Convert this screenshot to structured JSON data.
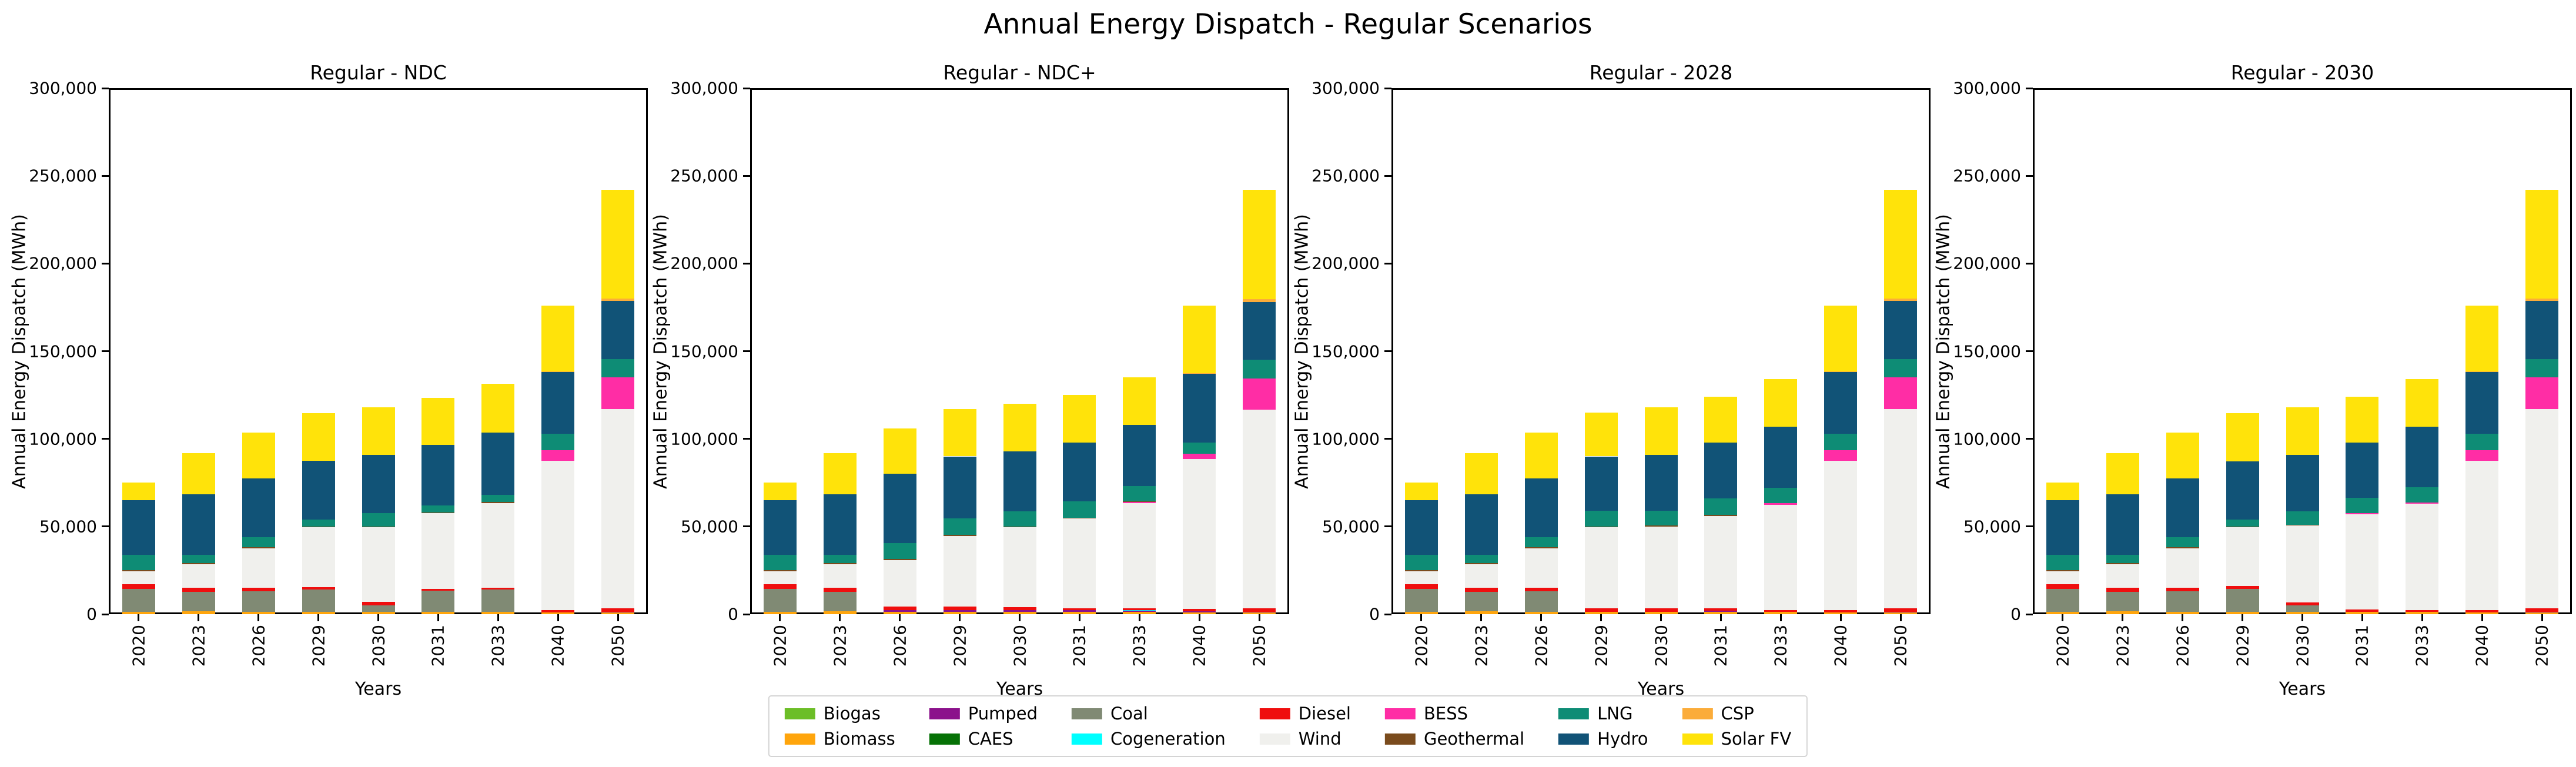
{
  "figure": {
    "title": "Annual Energy Dispatch - Regular Scenarios"
  },
  "axis": {
    "ylabel": "Annual Energy Dispatch (MWh)",
    "xlabel": "Years",
    "ylim": [
      0,
      300000
    ],
    "ytick_values": [
      0,
      50000,
      100000,
      150000,
      200000,
      250000,
      300000
    ],
    "ytick_labels": [
      "0",
      "50,000",
      "100,000",
      "150,000",
      "200,000",
      "250,000",
      "300,000"
    ],
    "grid": "off"
  },
  "colors": {
    "Biogas": "#6CBE27",
    "Biomass": "#FFA50C",
    "Pumped": "#8B118B",
    "CAES": "#067206",
    "Coal": "#808A74",
    "Cogeneration": "#00FFFF",
    "Diesel": "#EF0E0E",
    "Wind": "#F0F0ED",
    "BESS": "#FF2DA5",
    "Geothermal": "#7A4B1D",
    "LNG": "#0E8C75",
    "Hydro": "#115377",
    "CSP": "#FBAC3A",
    "Solar FV": "#FFE30A"
  },
  "legend": {
    "rows": [
      [
        "Biogas",
        "Pumped",
        "Coal",
        "Diesel",
        "BESS",
        "LNG",
        "CSP"
      ],
      [
        "Biomass",
        "CAES",
        "Cogeneration",
        "Wind",
        "Geothermal",
        "Hydro",
        "Solar FV"
      ]
    ]
  },
  "chart_data": [
    {
      "type": "bar",
      "stacked": true,
      "title": "Regular - NDC",
      "categories": [
        "2020",
        "2023",
        "2026",
        "2029",
        "2030",
        "2031",
        "2033",
        "2040",
        "2050"
      ],
      "series": [
        {
          "name": "Biogas",
          "values": [
            0,
            0,
            0,
            0,
            0,
            0,
            0,
            0,
            0
          ]
        },
        {
          "name": "Biomass",
          "values": [
            1500,
            1800,
            1500,
            1500,
            1500,
            1500,
            1500,
            1000,
            1000
          ]
        },
        {
          "name": "Pumped",
          "values": [
            0,
            0,
            0,
            0,
            0,
            0,
            0,
            0,
            500
          ]
        },
        {
          "name": "CAES",
          "values": [
            0,
            0,
            0,
            0,
            0,
            0,
            0,
            0,
            0
          ]
        },
        {
          "name": "Coal",
          "values": [
            13000,
            11000,
            11500,
            12500,
            3500,
            12000,
            12500,
            0,
            0
          ]
        },
        {
          "name": "Cogeneration",
          "values": [
            0,
            0,
            0,
            0,
            0,
            0,
            0,
            0,
            0
          ]
        },
        {
          "name": "Diesel",
          "values": [
            2500,
            2200,
            2000,
            1500,
            2000,
            1000,
            1000,
            1500,
            2000
          ]
        },
        {
          "name": "Wind",
          "values": [
            7500,
            13500,
            22500,
            34000,
            42500,
            43000,
            48500,
            85000,
            113500
          ]
        },
        {
          "name": "BESS",
          "values": [
            0,
            0,
            0,
            0,
            0,
            0,
            0,
            6000,
            18000
          ]
        },
        {
          "name": "Geothermal",
          "values": [
            800,
            700,
            600,
            600,
            600,
            600,
            500,
            0,
            0
          ]
        },
        {
          "name": "LNG",
          "values": [
            8700,
            4800,
            5900,
            3900,
            7400,
            3900,
            4000,
            9500,
            10500
          ]
        },
        {
          "name": "Hydro",
          "values": [
            31000,
            34500,
            33500,
            33500,
            33500,
            34500,
            35500,
            35000,
            33000
          ]
        },
        {
          "name": "CSP",
          "values": [
            0,
            0,
            0,
            0,
            0,
            0,
            0,
            500,
            1500
          ]
        },
        {
          "name": "Solar FV",
          "values": [
            10000,
            23500,
            26000,
            27000,
            27000,
            27000,
            28000,
            37500,
            62000
          ]
        }
      ]
    },
    {
      "type": "bar",
      "stacked": true,
      "title": "Regular - NDC+",
      "categories": [
        "2020",
        "2023",
        "2026",
        "2029",
        "2030",
        "2031",
        "2033",
        "2040",
        "2050"
      ],
      "series": [
        {
          "name": "Biogas",
          "values": [
            0,
            0,
            0,
            0,
            0,
            0,
            0,
            0,
            0
          ]
        },
        {
          "name": "Biomass",
          "values": [
            1500,
            1800,
            1500,
            1500,
            1500,
            1500,
            1500,
            1000,
            1000
          ]
        },
        {
          "name": "Pumped",
          "values": [
            0,
            0,
            800,
            800,
            800,
            800,
            500,
            600,
            500
          ]
        },
        {
          "name": "CAES",
          "values": [
            0,
            0,
            0,
            0,
            0,
            0,
            0,
            0,
            0
          ]
        },
        {
          "name": "Coal",
          "values": [
            13000,
            11000,
            0,
            0,
            0,
            0,
            0,
            0,
            0
          ]
        },
        {
          "name": "Cogeneration",
          "values": [
            0,
            0,
            0,
            0,
            0,
            0,
            400,
            0,
            0
          ]
        },
        {
          "name": "Diesel",
          "values": [
            2500,
            2200,
            2200,
            2200,
            1700,
            1200,
            900,
            1400,
            2000
          ]
        },
        {
          "name": "Wind",
          "values": [
            7500,
            13500,
            26500,
            40000,
            45500,
            51000,
            60200,
            85500,
            113000
          ]
        },
        {
          "name": "BESS",
          "values": [
            0,
            0,
            0,
            0,
            0,
            0,
            500,
            3000,
            18000
          ]
        },
        {
          "name": "Geothermal",
          "values": [
            800,
            700,
            600,
            600,
            500,
            500,
            300,
            0,
            0
          ]
        },
        {
          "name": "LNG",
          "values": [
            8700,
            4800,
            8900,
            9400,
            8500,
            9500,
            8700,
            6500,
            10500
          ]
        },
        {
          "name": "Hydro",
          "values": [
            31000,
            34500,
            39500,
            35500,
            34500,
            33500,
            35000,
            39000,
            33000
          ]
        },
        {
          "name": "CSP",
          "values": [
            0,
            0,
            0,
            0,
            0,
            0,
            0,
            500,
            1500
          ]
        },
        {
          "name": "Solar FV",
          "values": [
            10000,
            23500,
            26000,
            27000,
            27000,
            27000,
            27000,
            38500,
            62500
          ]
        }
      ]
    },
    {
      "type": "bar",
      "stacked": true,
      "title": "Regular - 2028",
      "categories": [
        "2020",
        "2023",
        "2026",
        "2029",
        "2030",
        "2031",
        "2033",
        "2040",
        "2050"
      ],
      "series": [
        {
          "name": "Biogas",
          "values": [
            0,
            0,
            0,
            0,
            0,
            0,
            0,
            0,
            0
          ]
        },
        {
          "name": "Biomass",
          "values": [
            1500,
            1800,
            1500,
            1500,
            1500,
            1500,
            1500,
            1000,
            1000
          ]
        },
        {
          "name": "Pumped",
          "values": [
            0,
            0,
            0,
            0,
            0,
            500,
            0,
            0,
            500
          ]
        },
        {
          "name": "CAES",
          "values": [
            0,
            0,
            0,
            0,
            0,
            0,
            0,
            0,
            0
          ]
        },
        {
          "name": "Coal",
          "values": [
            13000,
            11000,
            11500,
            0,
            0,
            0,
            0,
            0,
            0
          ]
        },
        {
          "name": "Cogeneration",
          "values": [
            0,
            0,
            0,
            0,
            0,
            0,
            0,
            0,
            0
          ]
        },
        {
          "name": "Diesel",
          "values": [
            2500,
            2200,
            2000,
            2000,
            1700,
            1200,
            1000,
            1500,
            2000
          ]
        },
        {
          "name": "Wind",
          "values": [
            7500,
            13500,
            22500,
            46000,
            46800,
            52800,
            60000,
            85000,
            113500
          ]
        },
        {
          "name": "BESS",
          "values": [
            0,
            0,
            0,
            0,
            0,
            0,
            700,
            6000,
            18000
          ]
        },
        {
          "name": "Geothermal",
          "values": [
            800,
            700,
            600,
            500,
            500,
            500,
            0,
            0,
            0
          ]
        },
        {
          "name": "LNG",
          "values": [
            8700,
            4800,
            5900,
            9000,
            8500,
            9500,
            8800,
            9500,
            10500
          ]
        },
        {
          "name": "Hydro",
          "values": [
            31000,
            34500,
            33500,
            31000,
            32000,
            32000,
            35000,
            35000,
            33000
          ]
        },
        {
          "name": "CSP",
          "values": [
            0,
            0,
            0,
            0,
            0,
            0,
            0,
            500,
            1500
          ]
        },
        {
          "name": "Solar FV",
          "values": [
            10000,
            23500,
            26000,
            25000,
            27000,
            26000,
            27000,
            37500,
            62000
          ]
        }
      ]
    },
    {
      "type": "bar",
      "stacked": true,
      "title": "Regular - 2030",
      "categories": [
        "2020",
        "2023",
        "2026",
        "2029",
        "2030",
        "2031",
        "2033",
        "2040",
        "2050"
      ],
      "series": [
        {
          "name": "Biogas",
          "values": [
            0,
            0,
            0,
            0,
            0,
            0,
            0,
            0,
            0
          ]
        },
        {
          "name": "Biomass",
          "values": [
            1500,
            1800,
            1500,
            1500,
            1500,
            1500,
            1500,
            1000,
            1000
          ]
        },
        {
          "name": "Pumped",
          "values": [
            0,
            0,
            0,
            0,
            0,
            0,
            0,
            0,
            500
          ]
        },
        {
          "name": "CAES",
          "values": [
            0,
            0,
            0,
            0,
            0,
            0,
            0,
            0,
            0
          ]
        },
        {
          "name": "Coal",
          "values": [
            13000,
            11000,
            11500,
            13000,
            3500,
            0,
            0,
            0,
            0
          ]
        },
        {
          "name": "Cogeneration",
          "values": [
            0,
            0,
            0,
            0,
            0,
            0,
            0,
            0,
            0
          ]
        },
        {
          "name": "Diesel",
          "values": [
            2500,
            2200,
            2000,
            1500,
            1700,
            1200,
            1000,
            1500,
            2000
          ]
        },
        {
          "name": "Wind",
          "values": [
            7500,
            13500,
            22500,
            33500,
            43800,
            54300,
            60500,
            85000,
            113500
          ]
        },
        {
          "name": "BESS",
          "values": [
            0,
            0,
            0,
            0,
            0,
            500,
            700,
            6000,
            18000
          ]
        },
        {
          "name": "Geothermal",
          "values": [
            800,
            700,
            600,
            600,
            500,
            0,
            0,
            0,
            0
          ]
        },
        {
          "name": "LNG",
          "values": [
            8700,
            4800,
            5900,
            3900,
            7500,
            9000,
            8800,
            9500,
            10500
          ]
        },
        {
          "name": "Hydro",
          "values": [
            31000,
            34500,
            33500,
            33000,
            32500,
            31500,
            34500,
            35000,
            33000
          ]
        },
        {
          "name": "CSP",
          "values": [
            0,
            0,
            0,
            0,
            0,
            0,
            0,
            500,
            1500
          ]
        },
        {
          "name": "Solar FV",
          "values": [
            10000,
            23500,
            26000,
            27500,
            27000,
            26000,
            27000,
            37500,
            62000
          ]
        }
      ]
    }
  ]
}
